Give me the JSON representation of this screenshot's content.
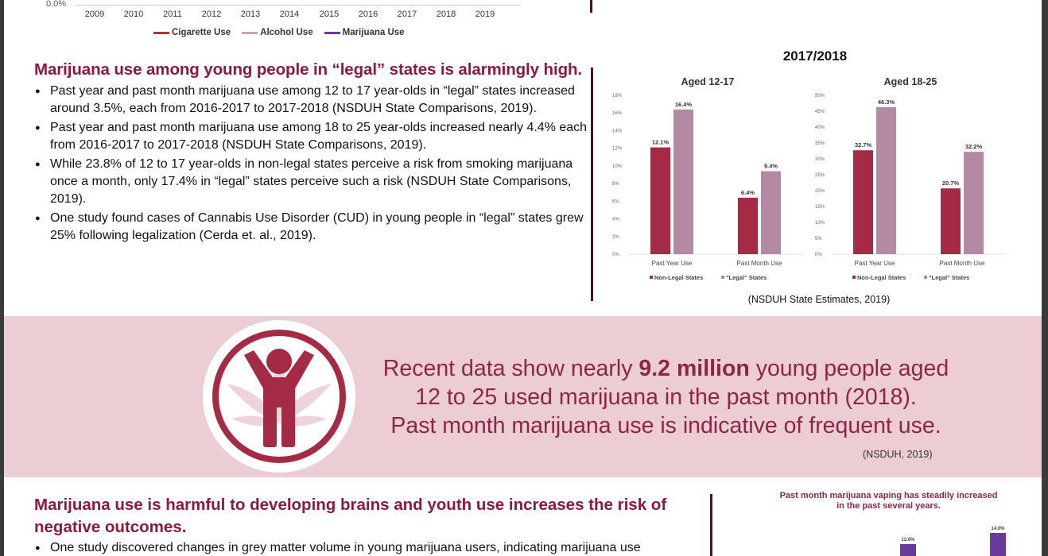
{
  "top_chart": {
    "y_zero_label": "0.0%",
    "years": [
      "2009",
      "2010",
      "2011",
      "2012",
      "2013",
      "2014",
      "2015",
      "2016",
      "2017",
      "2018",
      "2019"
    ],
    "legend": [
      {
        "label": "Cigarette Use",
        "color": "#b03040"
      },
      {
        "label": "Alcohol Use",
        "color": "#c6a3b8"
      },
      {
        "label": "Marijuana Use",
        "color": "#6a3a9a"
      }
    ]
  },
  "section1": {
    "heading": "Marijuana use among young people in “legal” states is alarmingly high.",
    "bullets": [
      "Past year and past month marijuana use among 12 to 17 year-olds in “legal” states increased around 3.5%, each from 2016-2017 to 2017-2018 (NSDUH State Comparisons, 2019).",
      "Past year and past month marijuana use among 18 to 25 year-olds increased nearly 4.4% each from 2016-2017 to 2017-2018 (NSDUH State Comparisons, 2019).",
      "While 23.8% of 12 to 17 year-olds in non-legal states perceive a risk from smoking marijuana once a month, only 17.4% in “legal” states perceive such a risk (NSDUH State Comparisons, 2019).",
      "One study found cases of Cannabis Use Disorder (CUD) in young people in “legal” states grew 25% following legalization (Cerda et. al., 2019)."
    ]
  },
  "chart_data": [
    {
      "type": "bar",
      "title": "2017/2018",
      "subtitle": "Aged 12-17",
      "categories": [
        "Past Year Use",
        "Past Month Use"
      ],
      "series": [
        {
          "name": "Non-Legal States",
          "values": [
            12.1,
            6.4
          ],
          "labels": [
            "12.1%",
            "6.4%"
          ]
        },
        {
          "name": "\"Legal\" States",
          "values": [
            16.4,
            9.4
          ],
          "labels": [
            "16.4%",
            "9.4%"
          ]
        }
      ],
      "ylim": [
        0,
        18
      ],
      "y_ticks": [
        "0%",
        "2%",
        "4%",
        "6%",
        "8%",
        "10%",
        "12%",
        "14%",
        "16%",
        "18%"
      ],
      "colors": [
        "#a52a44",
        "#b48aa3"
      ],
      "grid": false,
      "legend": "bottom"
    },
    {
      "type": "bar",
      "subtitle": "Aged 18-25",
      "categories": [
        "Past Year Use",
        "Past Month Use"
      ],
      "series": [
        {
          "name": "Non-Legal States",
          "values": [
            32.7,
            20.7
          ],
          "labels": [
            "32.7%",
            "20.7%"
          ]
        },
        {
          "name": "\"Legal\" States",
          "values": [
            46.3,
            32.2
          ],
          "labels": [
            "46.3%",
            "32.2%"
          ]
        }
      ],
      "ylim": [
        0,
        50
      ],
      "y_ticks": [
        "0%",
        "5%",
        "10%",
        "15%",
        "20%",
        "25%",
        "30%",
        "35%",
        "40%",
        "45%",
        "50%"
      ],
      "colors": [
        "#a52a44",
        "#b48aa3"
      ],
      "grid": false,
      "legend": "bottom"
    },
    {
      "type": "bar",
      "title": "Past month marijuana vaping has steadily increased in the past several years.",
      "data_labels": [
        "12.6%",
        "14.0%"
      ],
      "values": [
        12.6,
        14.0
      ],
      "colors": [
        "#6a3a9a"
      ]
    }
  ],
  "right_chart_source": "(NSDUH State Estimates, 2019)",
  "banner": {
    "text_pre": "Recent data show nearly ",
    "text_bold": "9.2 million",
    "text_post1": " young people aged",
    "line2": "12 to 25 used marijuana in the past month (2018).",
    "line3": "Past month marijuana use is indicative of frequent use.",
    "source": "(NSDUH, 2019)",
    "icon": "child-with-cannabis-leaf-icon"
  },
  "section2": {
    "heading": "Marijuana use is harmful to developing brains and youth use increases the risk of negative outcomes.",
    "bullets": [
      "One study discovered changes in grey matter volume in young marijuana users, indicating marijuana use"
    ]
  }
}
